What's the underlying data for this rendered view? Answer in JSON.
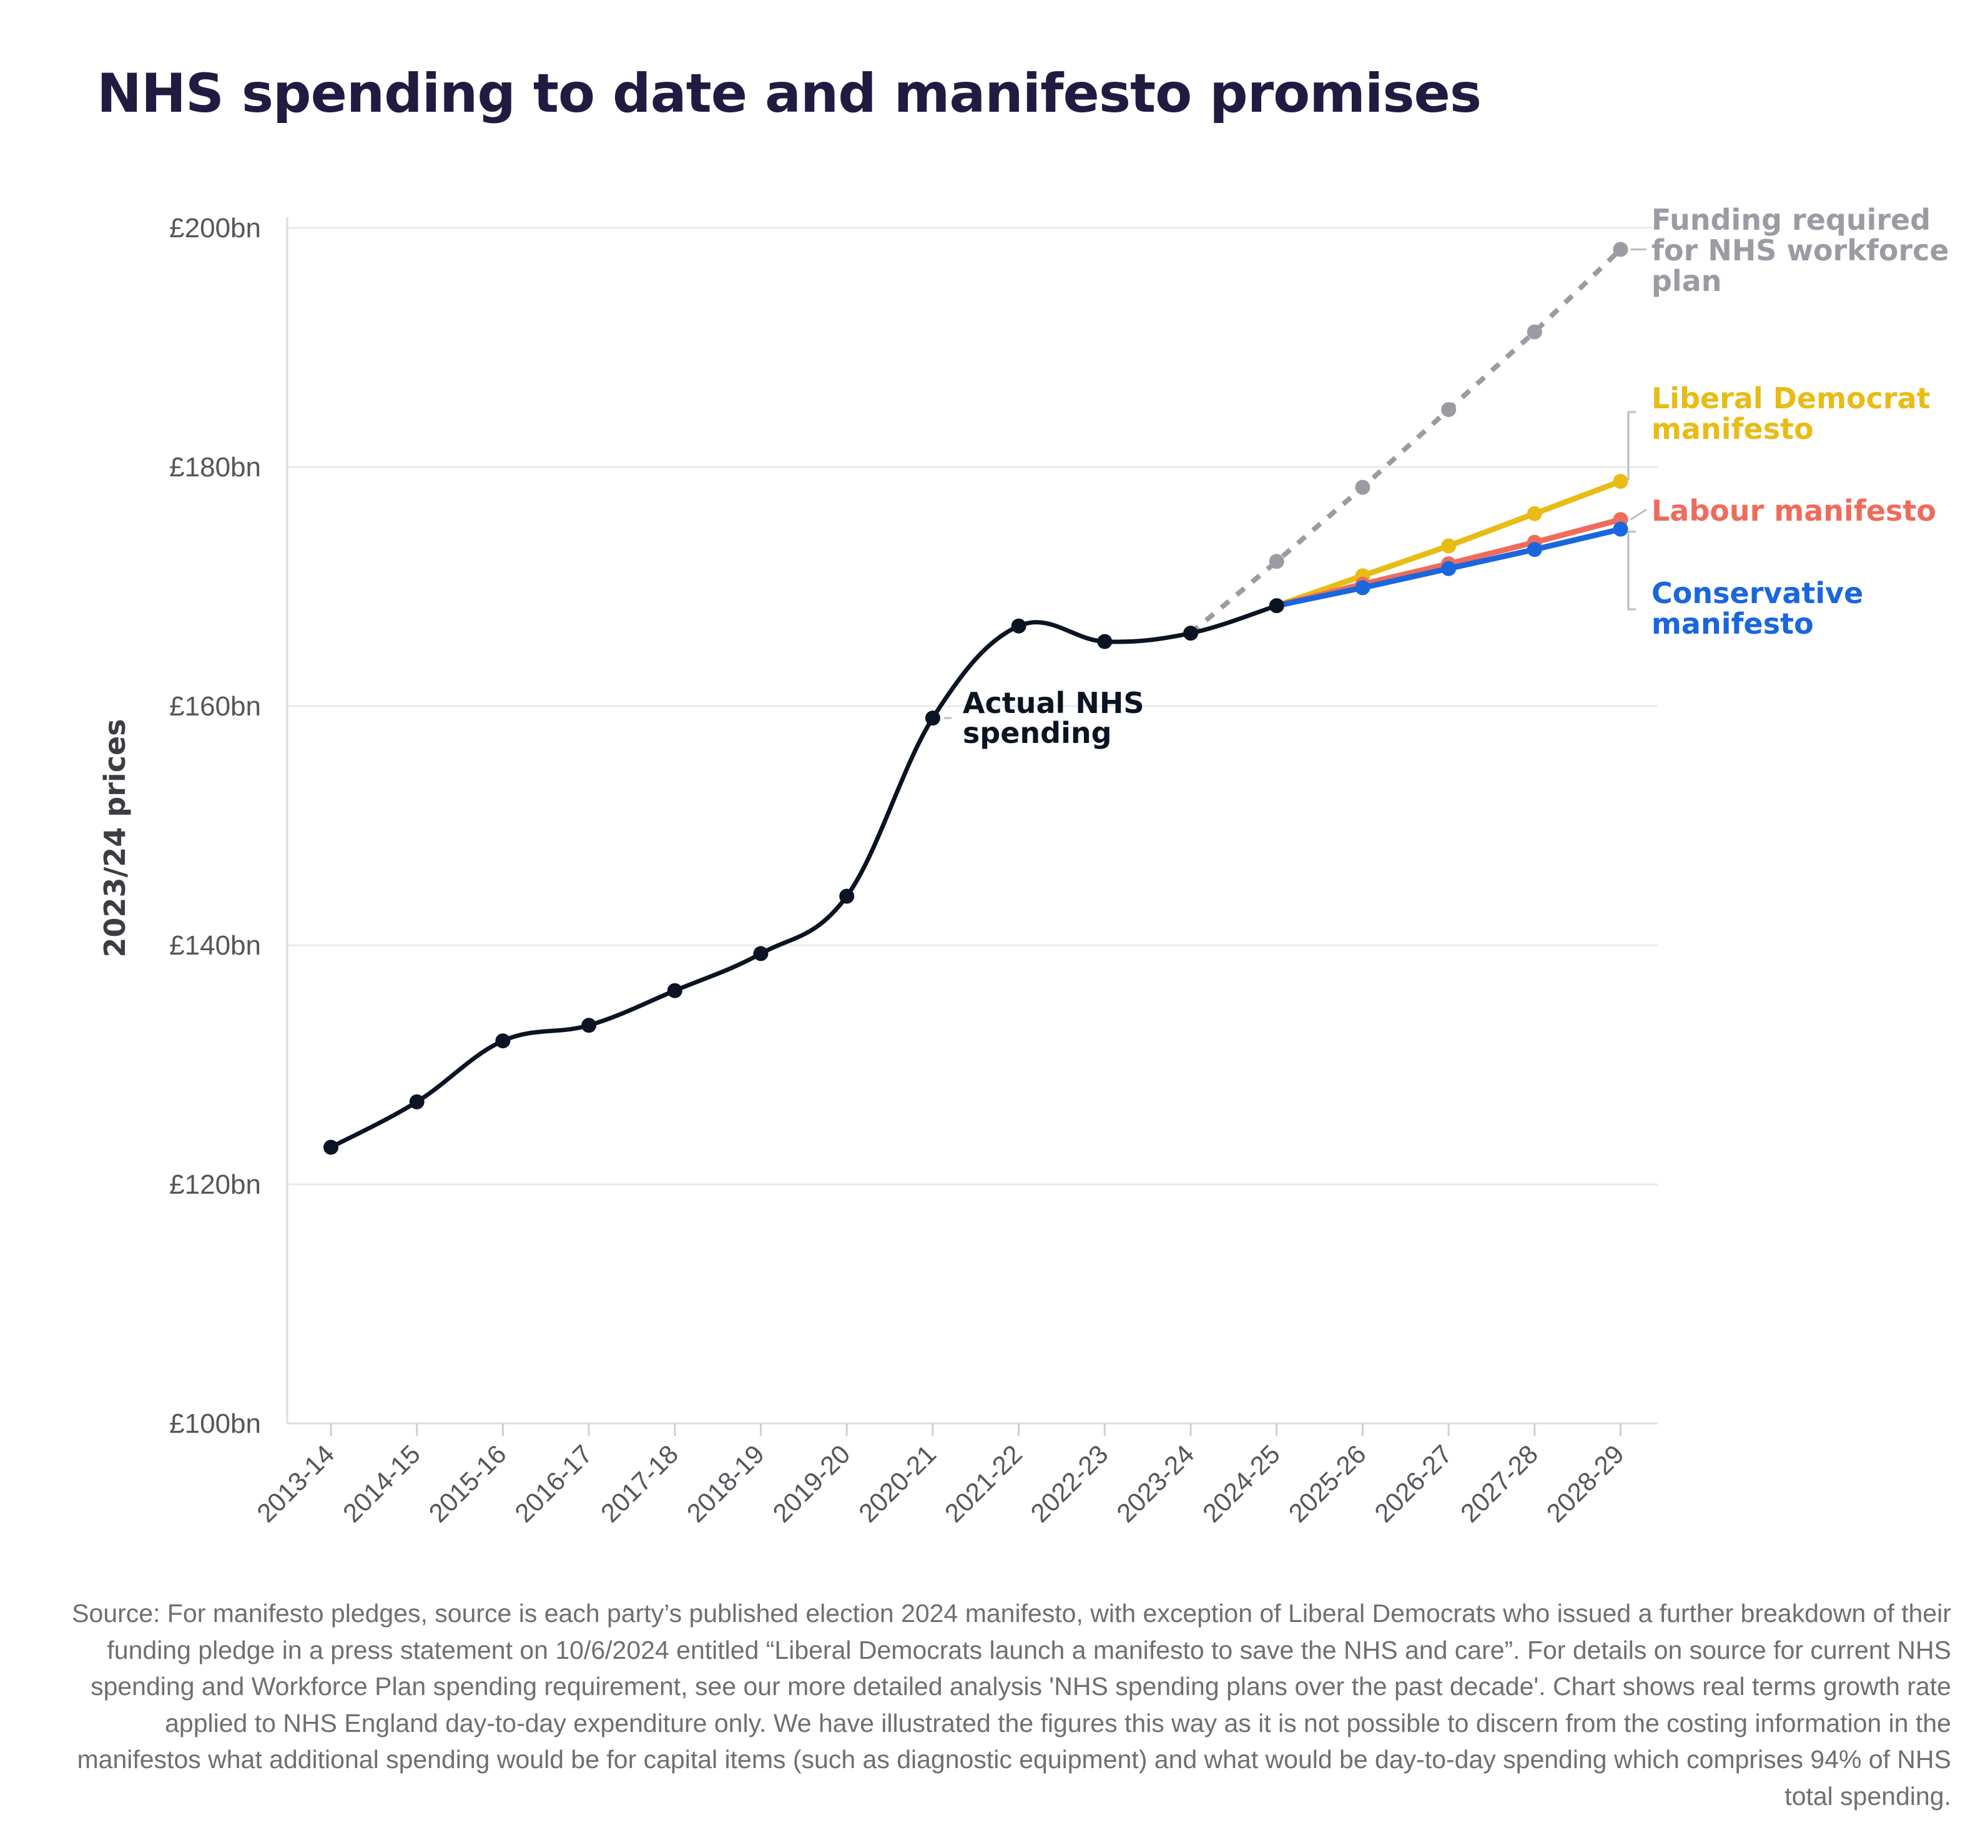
{
  "title": "NHS spending to date and manifesto promises",
  "chart_data": {
    "type": "line",
    "title": "NHS spending to date and manifesto promises",
    "xlabel": "",
    "ylabel": "2023/24 prices",
    "ylim": [
      100,
      200
    ],
    "yticks": [
      100,
      120,
      140,
      160,
      180,
      200
    ],
    "ytick_labels": [
      "£100bn",
      "£120bn",
      "£140bn",
      "£160bn",
      "£180bn",
      "£200bn"
    ],
    "grid": true,
    "categories": [
      "2013-14",
      "2014-15",
      "2015-16",
      "2016-17",
      "2017-18",
      "2018-19",
      "2019-20",
      "2020-21",
      "2021-22",
      "2022-23",
      "2023-24",
      "2024-25",
      "2025-26",
      "2026-27",
      "2027-28",
      "2028-29"
    ],
    "series": [
      {
        "name": "Actual NHS spending",
        "label": "Actual NHS spending",
        "color": "#0b1423",
        "style": "solid-smooth",
        "values": [
          123.1,
          126.9,
          132.0,
          133.3,
          136.2,
          139.3,
          144.1,
          159.0,
          166.7,
          165.4,
          166.1,
          168.4,
          null,
          null,
          null,
          null
        ]
      },
      {
        "name": "Funding required for NHS workforce plan",
        "label": "Funding required for NHS workforce plan",
        "color": "#9b9ba4",
        "style": "dashed",
        "values": [
          null,
          null,
          null,
          null,
          null,
          null,
          null,
          null,
          null,
          null,
          166.1,
          172.1,
          178.3,
          184.8,
          191.3,
          198.2
        ]
      },
      {
        "name": "Liberal Democrat manifesto",
        "label": "Liberal Democrat manifesto",
        "color": "#e8bc15",
        "style": "solid",
        "values": [
          null,
          null,
          null,
          null,
          null,
          null,
          null,
          null,
          null,
          null,
          null,
          168.4,
          170.9,
          173.4,
          176.1,
          178.8
        ]
      },
      {
        "name": "Conservative manifesto",
        "label": "Conservative manifesto",
        "color": "#1a66dd",
        "style": "solid",
        "values": [
          null,
          null,
          null,
          null,
          null,
          null,
          null,
          null,
          null,
          null,
          null,
          168.4,
          169.9,
          171.5,
          173.1,
          174.8
        ]
      },
      {
        "name": "Labour manifesto",
        "label": "Labour manifesto",
        "color": "#ef6b5b",
        "style": "solid",
        "values": [
          null,
          null,
          null,
          null,
          null,
          null,
          null,
          null,
          null,
          null,
          null,
          168.4,
          170.2,
          171.9,
          173.7,
          175.6
        ]
      }
    ]
  },
  "source_text": "Source: For manifesto pledges, source is each party’s published election 2024 manifesto, with exception of Liberal Democrats who issued a further breakdown of their funding pledge in a press statement on 10/6/2024 entitled “Liberal Democrats launch a manifesto to save the NHS and care”. For details on source for current NHS spending and Workforce Plan spending requirement, see our more detailed analysis 'NHS spending plans over the past decade'. Chart shows real terms growth rate applied to NHS England day-to-day expenditure only. We have illustrated the figures this way as it is not possible to discern from the costing information  in the manifestos what additional spending would be for capital items (such as diagnostic equipment) and what would be day-to-day spending which comprises 94% of NHS total spending."
}
